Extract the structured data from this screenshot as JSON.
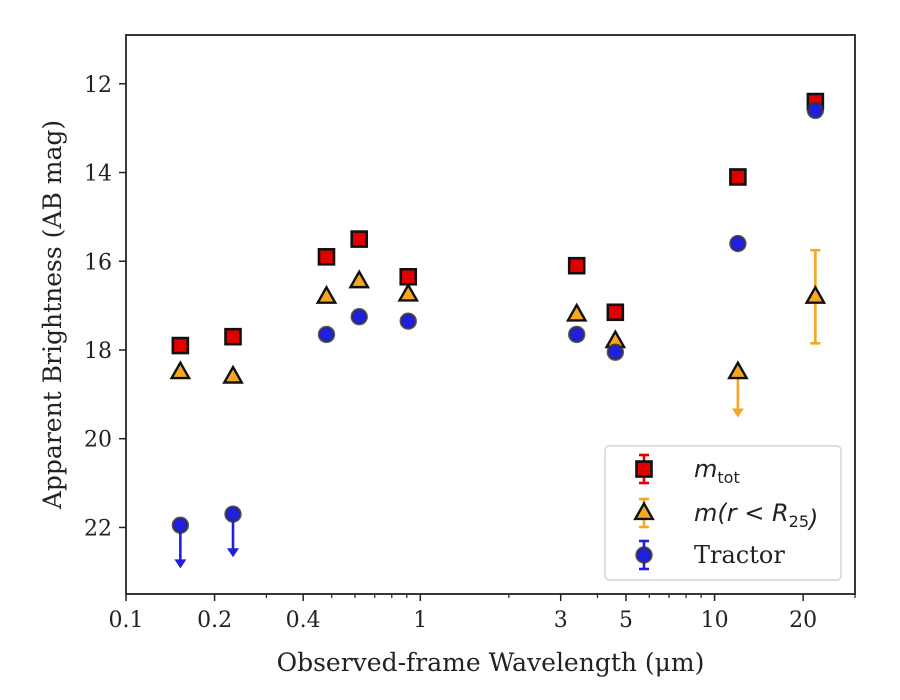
{
  "chart_data": {
    "type": "scatter",
    "xlabel": "Observed-frame Wavelength (μm)",
    "ylabel": "Apparent Brightness (AB mag)",
    "xscale": "log",
    "yinverted": true,
    "xlim": [
      0.1,
      30
    ],
    "ylim": [
      23.5,
      10.9
    ],
    "xticks": [
      {
        "value": 0.1,
        "label": "0.1"
      },
      {
        "value": 0.2,
        "label": "0.2"
      },
      {
        "value": 0.4,
        "label": "0.4"
      },
      {
        "value": 1,
        "label": "1"
      },
      {
        "value": 3,
        "label": "3"
      },
      {
        "value": 5,
        "label": "5"
      },
      {
        "value": 10,
        "label": "10"
      },
      {
        "value": 20,
        "label": "20"
      }
    ],
    "yticks": [
      {
        "value": 12,
        "label": "12"
      },
      {
        "value": 14,
        "label": "14"
      },
      {
        "value": 16,
        "label": "16"
      },
      {
        "value": 18,
        "label": "18"
      },
      {
        "value": 20,
        "label": "20"
      },
      {
        "value": 22,
        "label": "22"
      }
    ],
    "legend": {
      "position": "lower-right",
      "entries": [
        {
          "series": "m_tot",
          "parts": [
            {
              "t": "m",
              "style": "italic"
            },
            {
              "t": "tot",
              "style": "sub"
            }
          ]
        },
        {
          "series": "m_r25",
          "parts": [
            {
              "t": "m(r < R",
              "style": "italic"
            },
            {
              "t": "25",
              "style": "sub"
            },
            {
              "t": ")",
              "style": "italic"
            }
          ]
        },
        {
          "series": "tractor",
          "parts": [
            {
              "t": "Tractor",
              "style": "normal"
            }
          ]
        }
      ]
    },
    "series": [
      {
        "id": "m_tot",
        "marker": "square",
        "color": "#e00000",
        "points": [
          {
            "x": 0.153,
            "y": 17.9
          },
          {
            "x": 0.231,
            "y": 17.7
          },
          {
            "x": 0.48,
            "y": 15.9
          },
          {
            "x": 0.62,
            "y": 15.5
          },
          {
            "x": 0.91,
            "y": 16.35
          },
          {
            "x": 3.4,
            "y": 16.1
          },
          {
            "x": 4.6,
            "y": 17.15
          },
          {
            "x": 12.0,
            "y": 14.1
          },
          {
            "x": 22.0,
            "y": 12.4
          }
        ]
      },
      {
        "id": "m_r25",
        "marker": "triangle",
        "color": "#f5a623",
        "points": [
          {
            "x": 0.153,
            "y": 18.5
          },
          {
            "x": 0.231,
            "y": 18.6
          },
          {
            "x": 0.48,
            "y": 16.8
          },
          {
            "x": 0.62,
            "y": 16.45
          },
          {
            "x": 0.91,
            "y": 16.75
          },
          {
            "x": 3.4,
            "y": 17.2
          },
          {
            "x": 4.6,
            "y": 17.8
          },
          {
            "x": 12.0,
            "y": 18.5,
            "upper_limit_to": 19.5
          },
          {
            "x": 22.0,
            "y": 16.8,
            "err_low": 15.75,
            "err_high": 17.85
          }
        ]
      },
      {
        "id": "tractor",
        "marker": "circle",
        "color": "#1f1fe0",
        "points": [
          {
            "x": 0.153,
            "y": 21.95,
            "upper_limit_to": 22.9
          },
          {
            "x": 0.231,
            "y": 21.7,
            "upper_limit_to": 22.65
          },
          {
            "x": 0.48,
            "y": 17.65
          },
          {
            "x": 0.62,
            "y": 17.25
          },
          {
            "x": 0.91,
            "y": 17.35
          },
          {
            "x": 3.4,
            "y": 17.65
          },
          {
            "x": 4.6,
            "y": 18.05
          },
          {
            "x": 12.0,
            "y": 15.6
          },
          {
            "x": 22.0,
            "y": 12.6
          }
        ]
      }
    ]
  }
}
